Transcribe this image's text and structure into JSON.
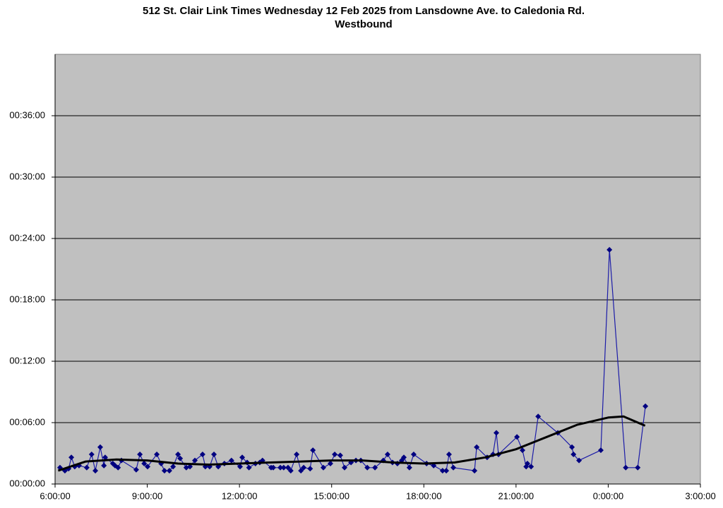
{
  "chart_data": {
    "type": "line",
    "title": [
      "512 St. Clair Link Times Wednesday 12 Feb 2025 from Lansdowne Ave. to Caledonia Rd.",
      "Westbound"
    ],
    "xlim": [
      6,
      27
    ],
    "xticks": [
      {
        "value": 6,
        "label": "6:00:00"
      },
      {
        "value": 9,
        "label": "9:00:00"
      },
      {
        "value": 12,
        "label": "12:00:00"
      },
      {
        "value": 15,
        "label": "15:00:00"
      },
      {
        "value": 18,
        "label": "18:00:00"
      },
      {
        "value": 21,
        "label": "21:00:00"
      },
      {
        "value": 24,
        "label": "0:00:00"
      },
      {
        "value": 27,
        "label": "3:00:00"
      }
    ],
    "ylim": [
      0,
      42
    ],
    "yticks": [
      {
        "value": 0,
        "label": "00:00:00"
      },
      {
        "value": 6,
        "label": "00:06:00"
      },
      {
        "value": 12,
        "label": "00:12:00"
      },
      {
        "value": 18,
        "label": "00:18:00"
      },
      {
        "value": 24,
        "label": "00:24:00"
      },
      {
        "value": 30,
        "label": "00:30:00"
      },
      {
        "value": 36,
        "label": "00:36:00"
      }
    ],
    "grid": true,
    "plot_background": "#c0c0c0",
    "series": [
      {
        "color": "#000080",
        "markers": true,
        "x": [
          6.16,
          6.32,
          6.44,
          6.53,
          6.64,
          6.78,
          7.03,
          7.19,
          7.31,
          7.47,
          7.59,
          7.63,
          7.88,
          7.95,
          8.05,
          8.16,
          8.64,
          8.76,
          8.9,
          9.01,
          9.31,
          9.45,
          9.56,
          9.72,
          9.84,
          10.0,
          10.07,
          10.27,
          10.39,
          10.55,
          10.8,
          10.89,
          11.03,
          11.17,
          11.31,
          11.51,
          11.74,
          12.02,
          12.09,
          12.25,
          12.31,
          12.52,
          12.66,
          12.75,
          13.03,
          13.1,
          13.33,
          13.44,
          13.58,
          13.67,
          13.86,
          14.0,
          14.09,
          14.3,
          14.39,
          14.73,
          14.96,
          15.1,
          15.28,
          15.42,
          15.63,
          15.79,
          15.95,
          16.16,
          16.41,
          16.68,
          16.82,
          16.98,
          17.14,
          17.28,
          17.35,
          17.53,
          17.67,
          18.09,
          18.32,
          18.61,
          18.73,
          18.82,
          18.96,
          19.65,
          19.72,
          20.06,
          20.25,
          20.36,
          20.43,
          21.03,
          21.21,
          21.33,
          21.37,
          21.49,
          21.72,
          22.36,
          22.82,
          22.87,
          23.05,
          23.76,
          24.04,
          24.57,
          24.96,
          25.21
        ],
        "values": [
          1.6,
          1.3,
          1.5,
          2.6,
          1.7,
          1.8,
          1.6,
          2.9,
          1.3,
          3.6,
          1.8,
          2.6,
          2.0,
          1.8,
          1.6,
          2.3,
          1.4,
          2.9,
          2.0,
          1.7,
          2.9,
          2.0,
          1.3,
          1.3,
          1.7,
          2.9,
          2.5,
          1.6,
          1.7,
          2.3,
          2.9,
          1.7,
          1.7,
          2.9,
          1.7,
          2.0,
          2.3,
          1.7,
          2.6,
          2.1,
          1.6,
          2.0,
          2.1,
          2.3,
          1.6,
          1.6,
          1.6,
          1.6,
          1.6,
          1.3,
          2.9,
          1.3,
          1.6,
          1.5,
          3.3,
          1.6,
          2.0,
          2.9,
          2.8,
          1.6,
          2.1,
          2.3,
          2.3,
          1.6,
          1.6,
          2.3,
          2.9,
          2.1,
          2.0,
          2.3,
          2.6,
          1.6,
          2.9,
          2.0,
          1.8,
          1.3,
          1.3,
          2.9,
          1.6,
          1.3,
          3.6,
          2.6,
          2.9,
          5.0,
          2.9,
          4.6,
          3.3,
          1.7,
          2.0,
          1.7,
          6.6,
          5.0,
          3.6,
          2.9,
          2.3,
          3.3,
          22.9,
          1.6,
          1.6,
          7.6
        ]
      },
      {
        "color": "#000000",
        "markers": false,
        "x": [
          6.1,
          7,
          8,
          9,
          10,
          11,
          12,
          13,
          14,
          15,
          16,
          17,
          18,
          19,
          20,
          21,
          22,
          23,
          24,
          24.5,
          25.2
        ],
        "values": [
          1.3,
          2.2,
          2.4,
          2.3,
          2.0,
          1.9,
          2.0,
          2.1,
          2.2,
          2.3,
          2.3,
          2.1,
          2.0,
          2.1,
          2.6,
          3.4,
          4.6,
          5.8,
          6.5,
          6.6,
          5.7
        ]
      }
    ]
  }
}
